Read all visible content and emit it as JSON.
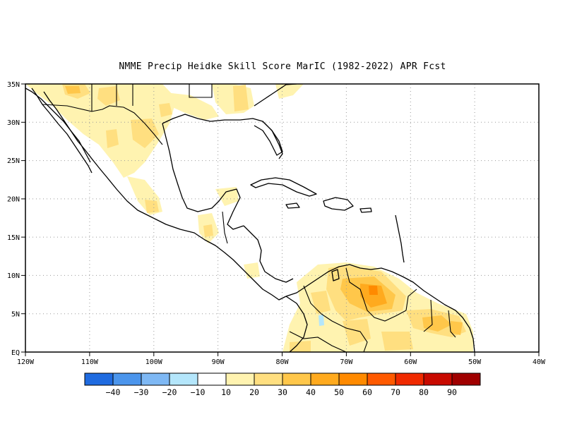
{
  "title": "NMME Precip Heidke Skill Score MarIC (1982-2022) APR Fcst",
  "map": {
    "lat_labels": [
      "EQ",
      "5N",
      "10N",
      "15N",
      "20N",
      "25N",
      "30N",
      "35N"
    ],
    "lon_labels": [
      "120W",
      "110W",
      "100W",
      "90W",
      "80W",
      "70W",
      "60W",
      "50W",
      "40W"
    ],
    "grid": "dotted"
  },
  "colorbar": {
    "colors": [
      "#1f6be0",
      "#4b95ec",
      "#7eb8f4",
      "#b4e6fb",
      "#ffffff",
      "#fff3b0",
      "#ffdf80",
      "#ffc74a",
      "#ffaa1e",
      "#ff8a00",
      "#ff5a00",
      "#f02a00",
      "#c80a00",
      "#a00000"
    ],
    "labels": [
      "-40",
      "-30",
      "-20",
      "-10",
      "10",
      "20",
      "30",
      "40",
      "50",
      "60",
      "70",
      "80",
      "90"
    ]
  }
}
